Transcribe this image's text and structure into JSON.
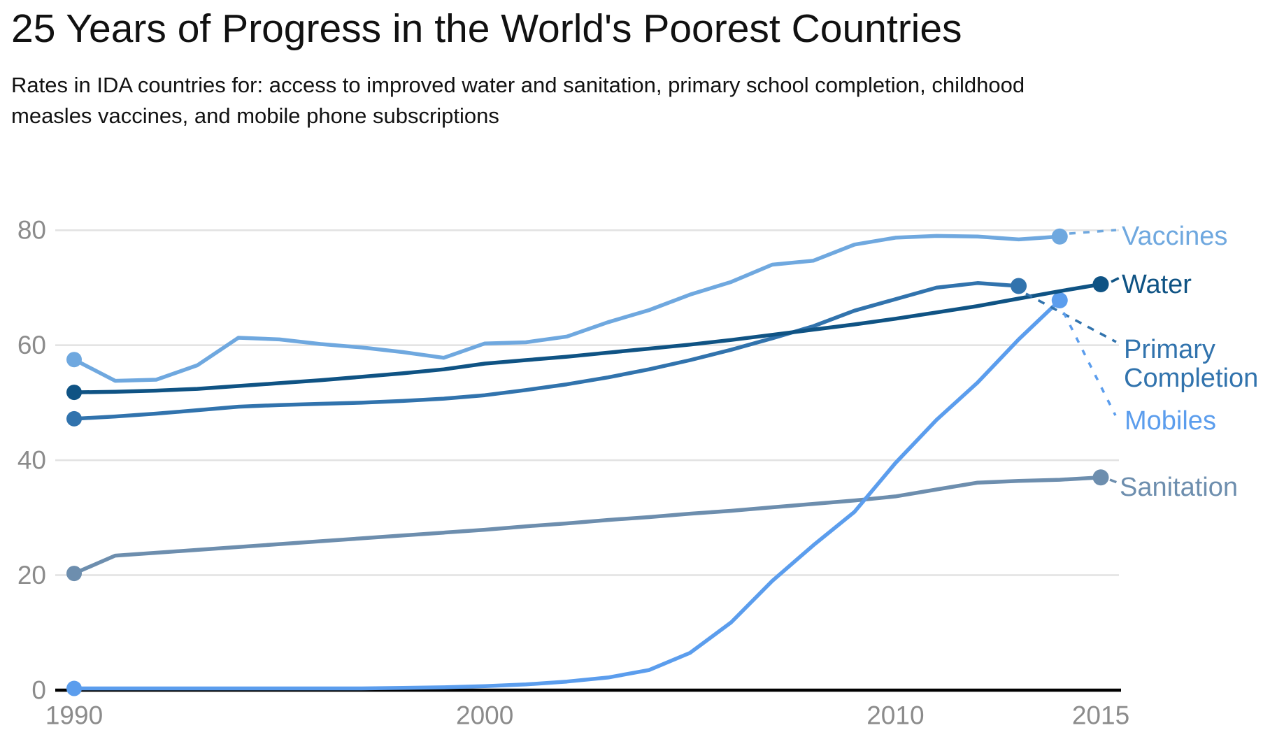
{
  "page": {
    "title": "25 Years of Progress in the World's Poorest Countries",
    "subtitle_lines": [
      "Rates in IDA countries for: access to improved water and sanitation, primary school completion, childhood",
      "measles vaccines, and mobile phone subscriptions"
    ]
  },
  "colors": {
    "vaccines": "#6fa8df",
    "water": "#0f5384",
    "primary_completion": "#3173ad",
    "mobiles": "#5b9ded",
    "sanitation": "#6d8eae",
    "gridline": "#e2e2e2",
    "axis_line": "#000000",
    "tick_text": "#8b8b8b",
    "title_text": "#111111"
  },
  "chart_data": {
    "type": "line",
    "title": "25 Years of Progress in the World's Poorest Countries",
    "subtitle": "Rates in IDA countries for: access to improved water and sanitation, primary school completion, childhood measles vaccines, and mobile phone subscriptions",
    "xlabel": "",
    "ylabel": "",
    "x_ticks": [
      1990,
      2000,
      2010,
      2015
    ],
    "y_ticks": [
      0,
      20,
      40,
      60,
      80
    ],
    "x_range": [
      1990,
      2015
    ],
    "y_range": [
      0,
      80
    ],
    "grid": "horizontal",
    "legend_position": "right-endpoint-labels",
    "series": [
      {
        "id": "vaccines",
        "name": "Vaccines",
        "label_lines": [
          "Vaccines"
        ],
        "color": "#6fa8df",
        "start_year": 1990,
        "end_year": 2014,
        "values": [
          57.5,
          53.8,
          54.0,
          56.5,
          61.3,
          61.0,
          60.2,
          59.6,
          58.8,
          57.8,
          60.3,
          60.5,
          61.5,
          64.0,
          66.1,
          68.8,
          71.0,
          74.0,
          74.7,
          77.5,
          78.7,
          79.0,
          78.9,
          78.4,
          78.9
        ]
      },
      {
        "id": "water",
        "name": "Water",
        "label_lines": [
          "Water"
        ],
        "color": "#0f5384",
        "start_year": 1990,
        "end_year": 2015,
        "values": [
          51.8,
          51.9,
          52.1,
          52.4,
          52.9,
          53.4,
          53.9,
          54.5,
          55.1,
          55.8,
          56.8,
          57.4,
          58.0,
          58.7,
          59.4,
          60.1,
          60.9,
          61.8,
          62.7,
          63.6,
          64.6,
          65.7,
          66.8,
          68.1,
          69.4,
          70.6
        ]
      },
      {
        "id": "primary_completion",
        "name": "Primary Completion",
        "label_lines": [
          "Primary",
          "Completion"
        ],
        "color": "#3173ad",
        "start_year": 1990,
        "end_year": 2013,
        "values": [
          47.2,
          47.6,
          48.1,
          48.7,
          49.3,
          49.6,
          49.8,
          50.0,
          50.3,
          50.7,
          51.3,
          52.2,
          53.2,
          54.4,
          55.8,
          57.4,
          59.2,
          61.2,
          63.3,
          66.0,
          68.0,
          70.0,
          70.8,
          70.3
        ]
      },
      {
        "id": "mobiles",
        "name": "Mobiles",
        "label_lines": [
          "Mobiles"
        ],
        "color": "#5b9ded",
        "start_year": 1990,
        "end_year": 2014,
        "values": [
          0.3,
          0.3,
          0.3,
          0.3,
          0.3,
          0.3,
          0.3,
          0.3,
          0.4,
          0.5,
          0.7,
          1.0,
          1.5,
          2.2,
          3.5,
          6.5,
          11.8,
          19.0,
          25.2,
          31.0,
          39.5,
          47.0,
          53.5,
          61.0,
          67.8
        ]
      },
      {
        "id": "sanitation",
        "name": "Sanitation",
        "label_lines": [
          "Sanitation"
        ],
        "color": "#6d8eae",
        "start_year": 1990,
        "end_year": 2015,
        "values": [
          20.3,
          23.4,
          23.9,
          24.4,
          24.9,
          25.4,
          25.9,
          26.4,
          26.9,
          27.4,
          27.9,
          28.5,
          29.0,
          29.6,
          30.1,
          30.7,
          31.2,
          31.8,
          32.4,
          33.0,
          33.7,
          34.9,
          36.1,
          36.4,
          36.6,
          37.0
        ]
      }
    ]
  }
}
